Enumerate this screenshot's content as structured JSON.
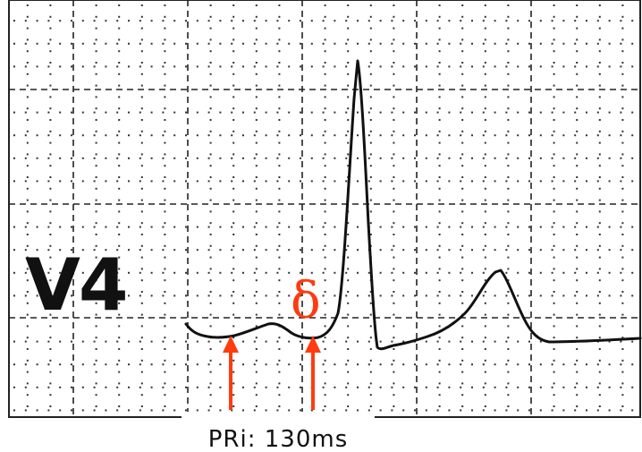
{
  "lead_label": "V4",
  "delta_label": "δ",
  "caption": "PRi: 130ms",
  "colors": {
    "trace": "#111111",
    "grid": "#222222",
    "annotation": "#ff3b10",
    "background": "#ffffff"
  },
  "arrows": [
    {
      "name": "pr-start-arrow"
    },
    {
      "name": "delta-wave-arrow"
    }
  ]
}
